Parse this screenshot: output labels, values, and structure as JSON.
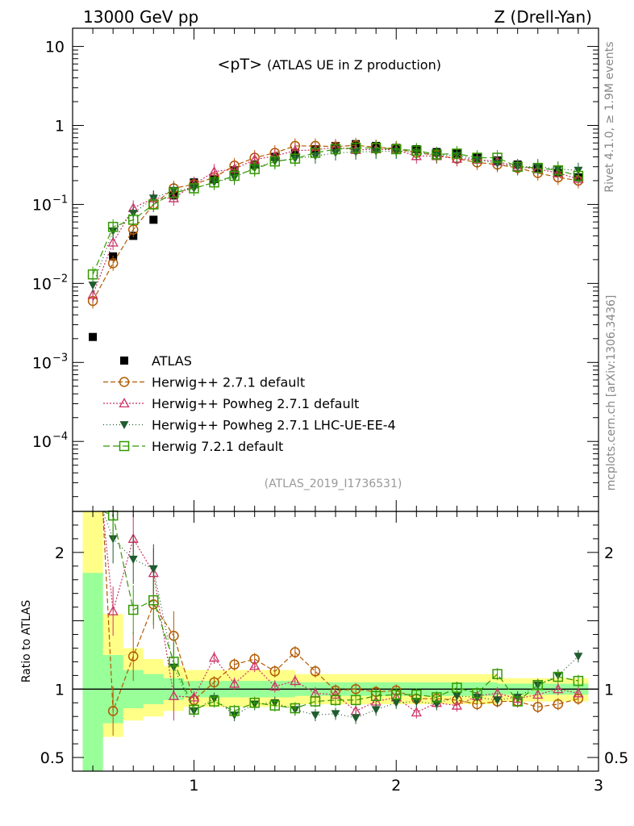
{
  "header": {
    "left": "13000 GeV pp",
    "right": "Z (Drell-Yan)"
  },
  "side_labels": {
    "rivet": "Rivet 4.1.0, ≥ 1.9M events",
    "mcplots": "mcplots.cern.ch [arXiv:1306.3436]"
  },
  "chart_data": {
    "type": "scatter",
    "title_main": "<pT>",
    "title_sub": "(ATLAS UE in Z production)",
    "analysis_id": "(ATLAS_2019_I1736531)",
    "xlabel": "",
    "xlim": [
      0.4,
      3.0
    ],
    "x_ticks": [
      1,
      2,
      3
    ],
    "x_tick_labels": [
      "1",
      "2",
      "3"
    ],
    "main": {
      "yscale": "log",
      "ylim": [
        1.3e-05,
        17
      ],
      "y_tick_labels": [
        {
          "value": 10,
          "label": "10"
        },
        {
          "value": 1,
          "label": "1"
        },
        {
          "value": 0.1,
          "label": "10",
          "exp": "−1"
        },
        {
          "value": 0.01,
          "label": "10",
          "exp": "−2"
        },
        {
          "value": 0.001,
          "label": "10",
          "exp": "−3"
        },
        {
          "value": 0.0001,
          "label": "10",
          "exp": "−4"
        }
      ]
    },
    "ratio": {
      "ylabel": "Ratio to ATLAS",
      "ylim": [
        0.4,
        2.3
      ],
      "y_tick_labels": [
        {
          "value": 2,
          "label": "2"
        },
        {
          "value": 1,
          "label": "1"
        },
        {
          "value": 0.5,
          "label": "0.5"
        }
      ],
      "band_1sigma": [
        {
          "x": 0.45,
          "lo": 0.3,
          "hi": 1.85
        },
        {
          "x": 0.55,
          "lo": 0.75,
          "hi": 1.25
        },
        {
          "x": 0.65,
          "lo": 0.86,
          "hi": 1.14
        },
        {
          "x": 0.75,
          "lo": 0.89,
          "hi": 1.11
        },
        {
          "x": 0.85,
          "lo": 0.92,
          "hi": 1.08
        },
        {
          "x": 0.95,
          "lo": 0.94,
          "hi": 1.06
        },
        {
          "x": 1.5,
          "lo": 0.95,
          "hi": 1.05
        },
        {
          "x": 2.5,
          "lo": 0.96,
          "hi": 1.04
        },
        {
          "x": 2.95,
          "lo": 0.95,
          "hi": 1.05
        }
      ],
      "band_2sigma": [
        {
          "x": 0.45,
          "lo": 0.3,
          "hi": 2.3
        },
        {
          "x": 0.55,
          "lo": 0.65,
          "hi": 1.55
        },
        {
          "x": 0.65,
          "lo": 0.77,
          "hi": 1.3
        },
        {
          "x": 0.75,
          "lo": 0.8,
          "hi": 1.22
        },
        {
          "x": 0.85,
          "lo": 0.84,
          "hi": 1.17
        },
        {
          "x": 0.95,
          "lo": 0.87,
          "hi": 1.14
        },
        {
          "x": 1.5,
          "lo": 0.89,
          "hi": 1.11
        },
        {
          "x": 2.5,
          "lo": 0.91,
          "hi": 1.08
        },
        {
          "x": 2.95,
          "lo": 0.86,
          "hi": 1.12
        }
      ]
    },
    "x": [
      0.5,
      0.6,
      0.7,
      0.8,
      0.9,
      1.0,
      1.1,
      1.2,
      1.3,
      1.4,
      1.5,
      1.6,
      1.7,
      1.8,
      1.9,
      2.0,
      2.1,
      2.2,
      2.3,
      2.4,
      2.5,
      2.6,
      2.7,
      2.8,
      2.9
    ],
    "series": [
      {
        "name": "ATLAS",
        "style": "data",
        "color": "#000000",
        "marker": "square-filled",
        "values": [
          0.0021,
          0.022,
          0.04,
          0.064,
          0.13,
          0.19,
          0.21,
          0.27,
          0.32,
          0.4,
          0.45,
          0.5,
          0.55,
          0.58,
          0.55,
          0.52,
          0.5,
          0.46,
          0.44,
          0.39,
          0.36,
          0.32,
          0.29,
          0.25,
          0.22
        ]
      },
      {
        "name": "Herwig++ 2.7.1 default",
        "style": "mc",
        "color": "#b35900",
        "marker": "circle-open",
        "dash": "6,3",
        "values": [
          0.006,
          0.018,
          0.048,
          0.1,
          0.16,
          0.18,
          0.22,
          0.31,
          0.39,
          0.45,
          0.55,
          0.55,
          0.54,
          0.56,
          0.53,
          0.51,
          0.45,
          0.42,
          0.38,
          0.34,
          0.32,
          0.29,
          0.25,
          0.22,
          0.2
        ]
      },
      {
        "name": "Herwig++ Powheg 2.7.1 default",
        "style": "mc",
        "color": "#cc3366",
        "marker": "triangle-up-open",
        "dash": "2,2",
        "values": [
          0.0072,
          0.033,
          0.09,
          0.12,
          0.12,
          0.18,
          0.26,
          0.28,
          0.37,
          0.41,
          0.48,
          0.49,
          0.53,
          0.49,
          0.5,
          0.49,
          0.41,
          0.41,
          0.38,
          0.37,
          0.35,
          0.3,
          0.28,
          0.25,
          0.21
        ]
      },
      {
        "name": "Herwig++ Powheg 2.7.1 LHC-UE-EE-4",
        "style": "mc",
        "color": "#1f5c2e",
        "marker": "triangle-down-filled",
        "dash": "1,3",
        "values": [
          0.0095,
          0.046,
          0.077,
          0.12,
          0.15,
          0.16,
          0.19,
          0.22,
          0.29,
          0.35,
          0.38,
          0.41,
          0.45,
          0.46,
          0.47,
          0.47,
          0.46,
          0.42,
          0.42,
          0.37,
          0.33,
          0.3,
          0.3,
          0.28,
          0.27
        ]
      },
      {
        "name": "Herwig 7.2.1 default",
        "style": "mc",
        "color": "#339900",
        "marker": "square-open",
        "dash": "8,4",
        "values": [
          0.013,
          0.052,
          0.064,
          0.1,
          0.14,
          0.16,
          0.19,
          0.23,
          0.28,
          0.35,
          0.38,
          0.45,
          0.5,
          0.52,
          0.52,
          0.5,
          0.48,
          0.43,
          0.44,
          0.39,
          0.39,
          0.3,
          0.29,
          0.27,
          0.23
        ]
      }
    ],
    "ratios": [
      {
        "name": "Herwig++ 2.7.1 default",
        "values": [
          null,
          0.84,
          1.24,
          1.62,
          1.39,
          0.92,
          1.05,
          1.18,
          1.22,
          1.13,
          1.27,
          1.13,
          0.99,
          1.0,
          0.98,
          0.99,
          0.93,
          0.93,
          0.92,
          0.89,
          0.91,
          0.91,
          0.87,
          0.89,
          0.93
        ]
      },
      {
        "name": "Herwig++ Powheg 2.7.1 default",
        "values": [
          null,
          1.57,
          2.1,
          1.85,
          0.95,
          0.94,
          1.23,
          1.04,
          1.17,
          1.02,
          1.06,
          0.97,
          0.96,
          0.84,
          0.91,
          0.94,
          0.83,
          0.9,
          0.88,
          0.95,
          0.97,
          0.93,
          0.96,
          1.0,
          0.97
        ]
      },
      {
        "name": "Herwig++ Powheg 2.7.1 LHC-UE-EE-4",
        "values": [
          null,
          2.1,
          1.95,
          1.88,
          1.16,
          0.84,
          0.93,
          0.81,
          0.89,
          0.9,
          0.85,
          0.81,
          0.82,
          0.79,
          0.85,
          0.9,
          0.91,
          0.89,
          0.95,
          0.94,
          0.92,
          0.94,
          1.03,
          1.1,
          1.24
        ]
      },
      {
        "name": "Herwig 7.2.1 default",
        "values": [
          null,
          2.27,
          1.58,
          1.65,
          1.2,
          0.85,
          0.91,
          0.84,
          0.9,
          0.88,
          0.86,
          0.91,
          0.92,
          0.92,
          0.95,
          0.96,
          0.96,
          0.94,
          1.01,
          0.97,
          1.11,
          0.91,
          1.03,
          1.09,
          1.06
        ]
      }
    ]
  }
}
